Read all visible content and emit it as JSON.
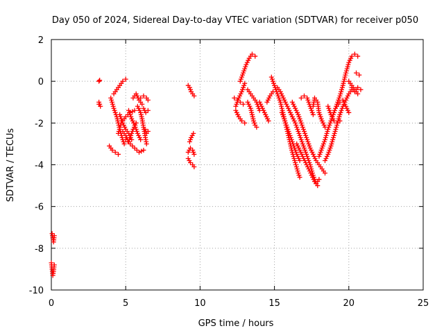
{
  "chart_data": {
    "type": "scatter",
    "title": "Day 050 of 2024, Sidereal Day-to-day VTEC variation (SDTVAR) for receiver p050",
    "xlabel": "GPS time / hours",
    "ylabel": "SDTVAR / TECUs",
    "xlim": [
      0,
      25
    ],
    "ylim": [
      -10,
      2
    ],
    "xticks": [
      "0",
      "5",
      "10",
      "15",
      "20",
      "25"
    ],
    "yticks": [
      "-10",
      "-8",
      "-6",
      "-4",
      "-2",
      "0",
      "2"
    ],
    "grid": true,
    "marker": "plus",
    "color": "#ff0000",
    "tracks": [
      {
        "points": [
          [
            0.05,
            -7.3
          ],
          [
            0.1,
            -7.5
          ],
          [
            0.15,
            -7.7
          ],
          [
            0.2,
            -7.4
          ]
        ]
      },
      {
        "points": [
          [
            0.0,
            -8.7
          ],
          [
            0.05,
            -9.0
          ],
          [
            0.1,
            -9.3
          ],
          [
            0.15,
            -9.1
          ],
          [
            0.2,
            -8.8
          ]
        ]
      },
      {
        "points": [
          [
            3.2,
            0.0
          ],
          [
            3.25,
            0.05
          ]
        ]
      },
      {
        "points": [
          [
            3.2,
            -1.0
          ],
          [
            3.3,
            -1.2
          ],
          [
            3.2,
            -1.1
          ]
        ]
      },
      {
        "points": [
          [
            3.9,
            -3.1
          ],
          [
            4.1,
            -3.3
          ],
          [
            4.3,
            -3.4
          ],
          [
            4.5,
            -3.5
          ]
        ]
      },
      {
        "points": [
          [
            4.0,
            -0.8
          ],
          [
            4.2,
            -1.3
          ],
          [
            4.4,
            -1.7
          ],
          [
            4.6,
            -2.3
          ],
          [
            4.8,
            -2.8
          ],
          [
            4.9,
            -3.0
          ]
        ]
      },
      {
        "points": [
          [
            4.2,
            -0.6
          ],
          [
            4.4,
            -0.4
          ],
          [
            4.6,
            -0.2
          ],
          [
            4.8,
            0.0
          ],
          [
            5.0,
            0.1
          ]
        ]
      },
      {
        "points": [
          [
            4.5,
            -2.5
          ],
          [
            4.7,
            -2.0
          ],
          [
            5.0,
            -1.7
          ],
          [
            5.3,
            -1.5
          ],
          [
            5.6,
            -1.4
          ]
        ]
      },
      {
        "points": [
          [
            4.6,
            -1.6
          ],
          [
            4.8,
            -2.0
          ],
          [
            5.0,
            -2.3
          ],
          [
            5.2,
            -2.5
          ],
          [
            5.4,
            -2.8
          ]
        ]
      },
      {
        "points": [
          [
            4.8,
            -2.4
          ],
          [
            5.0,
            -2.6
          ],
          [
            5.2,
            -2.9
          ],
          [
            5.5,
            -2.3
          ],
          [
            5.7,
            -2.0
          ]
        ]
      },
      {
        "points": [
          [
            5.2,
            -1.4
          ],
          [
            5.4,
            -1.8
          ],
          [
            5.6,
            -2.1
          ],
          [
            5.8,
            -2.5
          ],
          [
            6.0,
            -2.8
          ]
        ]
      },
      {
        "points": [
          [
            5.0,
            -2.8
          ],
          [
            5.3,
            -3.0
          ],
          [
            5.6,
            -3.2
          ],
          [
            5.9,
            -3.4
          ],
          [
            6.2,
            -3.3
          ]
        ]
      },
      {
        "points": [
          [
            5.5,
            -0.8
          ],
          [
            5.7,
            -0.6
          ],
          [
            5.9,
            -0.9
          ],
          [
            6.1,
            -1.1
          ]
        ]
      },
      {
        "points": [
          [
            5.8,
            -1.2
          ],
          [
            6.0,
            -1.5
          ],
          [
            6.1,
            -1.8
          ],
          [
            6.2,
            -2.2
          ],
          [
            6.3,
            -2.6
          ],
          [
            6.4,
            -3.0
          ]
        ]
      },
      {
        "points": [
          [
            6.0,
            -0.8
          ],
          [
            6.2,
            -0.7
          ],
          [
            6.4,
            -0.8
          ],
          [
            6.5,
            -0.9
          ]
        ]
      },
      {
        "points": [
          [
            6.2,
            -1.3
          ],
          [
            6.35,
            -1.5
          ],
          [
            6.5,
            -1.4
          ]
        ]
      },
      {
        "points": [
          [
            6.3,
            -2.3
          ],
          [
            6.4,
            -2.5
          ],
          [
            6.5,
            -2.4
          ]
        ]
      },
      {
        "points": [
          [
            9.2,
            -0.2
          ],
          [
            9.3,
            -0.3
          ],
          [
            9.4,
            -0.5
          ],
          [
            9.5,
            -0.6
          ],
          [
            9.6,
            -0.7
          ]
        ]
      },
      {
        "points": [
          [
            9.3,
            -2.9
          ],
          [
            9.4,
            -2.7
          ],
          [
            9.55,
            -2.5
          ]
        ]
      },
      {
        "points": [
          [
            9.2,
            -3.4
          ],
          [
            9.35,
            -3.2
          ],
          [
            9.5,
            -3.3
          ],
          [
            9.6,
            -3.5
          ]
        ]
      },
      {
        "points": [
          [
            9.2,
            -3.7
          ],
          [
            9.35,
            -3.9
          ],
          [
            9.5,
            -4.0
          ],
          [
            9.6,
            -4.1
          ]
        ]
      },
      {
        "points": [
          [
            12.3,
            -0.8
          ],
          [
            12.5,
            -0.9
          ],
          [
            12.7,
            -1.0
          ],
          [
            12.9,
            -1.1
          ]
        ]
      },
      {
        "points": [
          [
            12.4,
            -1.4
          ],
          [
            12.6,
            -1.7
          ],
          [
            12.8,
            -1.9
          ],
          [
            13.0,
            -2.0
          ]
        ]
      },
      {
        "points": [
          [
            12.4,
            -1.2
          ],
          [
            12.6,
            -0.8
          ],
          [
            12.8,
            -0.5
          ],
          [
            13.0,
            -0.1
          ]
        ]
      },
      {
        "points": [
          [
            12.7,
            0.0
          ],
          [
            12.9,
            0.4
          ],
          [
            13.1,
            0.8
          ],
          [
            13.3,
            1.1
          ],
          [
            13.5,
            1.3
          ],
          [
            13.7,
            1.2
          ]
        ]
      },
      {
        "points": [
          [
            13.2,
            -0.4
          ],
          [
            13.4,
            -0.6
          ],
          [
            13.6,
            -0.8
          ],
          [
            13.8,
            -1.0
          ],
          [
            14.0,
            -1.4
          ]
        ]
      },
      {
        "points": [
          [
            13.2,
            -1.0
          ],
          [
            13.4,
            -1.3
          ],
          [
            13.5,
            -1.6
          ],
          [
            13.6,
            -1.9
          ],
          [
            13.7,
            -2.1
          ],
          [
            13.8,
            -2.2
          ]
        ]
      },
      {
        "points": [
          [
            14.0,
            -1.0
          ],
          [
            14.2,
            -1.3
          ],
          [
            14.4,
            -1.6
          ],
          [
            14.6,
            -1.9
          ]
        ]
      },
      {
        "points": [
          [
            14.5,
            -1.0
          ],
          [
            14.7,
            -0.7
          ],
          [
            14.9,
            -0.5
          ]
        ]
      },
      {
        "points": [
          [
            14.8,
            0.2
          ],
          [
            15.0,
            -0.2
          ],
          [
            15.2,
            -0.6
          ],
          [
            15.4,
            -1.0
          ],
          [
            15.6,
            -1.6
          ],
          [
            15.8,
            -2.2
          ],
          [
            16.0,
            -2.8
          ],
          [
            16.2,
            -3.4
          ],
          [
            16.4,
            -3.9
          ],
          [
            16.6,
            -4.4
          ],
          [
            16.7,
            -4.6
          ]
        ]
      },
      {
        "points": [
          [
            15.2,
            -0.3
          ],
          [
            15.4,
            -0.5
          ],
          [
            15.6,
            -0.8
          ],
          [
            15.8,
            -1.1
          ],
          [
            16.0,
            -1.4
          ],
          [
            16.2,
            -1.7
          ],
          [
            16.4,
            -2.0
          ],
          [
            16.6,
            -2.4
          ],
          [
            16.8,
            -2.8
          ],
          [
            17.0,
            -3.2
          ],
          [
            17.2,
            -3.6
          ],
          [
            17.4,
            -4.0
          ],
          [
            17.6,
            -4.5
          ],
          [
            17.8,
            -4.9
          ],
          [
            18.0,
            -4.7
          ]
        ]
      },
      {
        "points": [
          [
            15.5,
            -1.5
          ],
          [
            15.7,
            -1.9
          ],
          [
            15.9,
            -2.3
          ],
          [
            16.1,
            -2.7
          ],
          [
            16.3,
            -3.1
          ],
          [
            16.5,
            -3.5
          ],
          [
            16.7,
            -3.8
          ]
        ]
      },
      {
        "points": [
          [
            16.2,
            -1.0
          ],
          [
            16.4,
            -1.3
          ],
          [
            16.6,
            -1.6
          ],
          [
            16.8,
            -2.0
          ],
          [
            17.0,
            -2.4
          ],
          [
            17.2,
            -2.8
          ],
          [
            17.4,
            -3.2
          ],
          [
            17.6,
            -3.5
          ],
          [
            17.8,
            -3.8
          ],
          [
            18.0,
            -4.0
          ],
          [
            18.2,
            -4.2
          ],
          [
            18.4,
            -4.4
          ]
        ]
      },
      {
        "points": [
          [
            16.5,
            -3.0
          ],
          [
            16.7,
            -3.3
          ],
          [
            16.9,
            -3.6
          ],
          [
            17.1,
            -3.9
          ],
          [
            17.3,
            -4.2
          ],
          [
            17.5,
            -4.5
          ],
          [
            17.7,
            -4.8
          ],
          [
            17.9,
            -5.0
          ]
        ]
      },
      {
        "points": [
          [
            16.8,
            -0.8
          ],
          [
            17.0,
            -0.7
          ],
          [
            17.2,
            -0.8
          ],
          [
            17.4,
            -1.2
          ],
          [
            17.6,
            -1.6
          ]
        ]
      },
      {
        "points": [
          [
            17.6,
            -1.2
          ],
          [
            17.7,
            -0.8
          ],
          [
            17.9,
            -1.0
          ],
          [
            18.0,
            -1.5
          ],
          [
            18.2,
            -1.9
          ],
          [
            18.4,
            -2.2
          ]
        ]
      },
      {
        "points": [
          [
            18.0,
            -3.6
          ],
          [
            18.2,
            -3.2
          ],
          [
            18.4,
            -2.8
          ],
          [
            18.6,
            -2.3
          ],
          [
            18.8,
            -1.9
          ],
          [
            19.0,
            -1.5
          ],
          [
            19.2,
            -1.1
          ],
          [
            19.4,
            -0.7
          ],
          [
            19.6,
            -0.2
          ],
          [
            19.8,
            0.4
          ],
          [
            20.0,
            0.9
          ],
          [
            20.2,
            1.2
          ],
          [
            20.4,
            1.3
          ],
          [
            20.6,
            1.2
          ]
        ]
      },
      {
        "points": [
          [
            18.4,
            -3.8
          ],
          [
            18.6,
            -3.5
          ],
          [
            18.8,
            -3.1
          ],
          [
            19.0,
            -2.6
          ],
          [
            19.2,
            -2.1
          ],
          [
            19.4,
            -1.6
          ],
          [
            19.6,
            -1.2
          ],
          [
            19.8,
            -0.9
          ],
          [
            20.0,
            -0.6
          ],
          [
            20.2,
            -0.4
          ]
        ]
      },
      {
        "points": [
          [
            18.6,
            -1.2
          ],
          [
            18.8,
            -1.6
          ],
          [
            19.0,
            -1.9
          ],
          [
            19.2,
            -2.0
          ],
          [
            19.4,
            -1.9
          ]
        ]
      },
      {
        "points": [
          [
            19.2,
            -1.2
          ],
          [
            19.4,
            -1.0
          ],
          [
            19.6,
            -0.9
          ],
          [
            19.8,
            -1.2
          ],
          [
            20.0,
            -1.5
          ]
        ]
      },
      {
        "points": [
          [
            20.0,
            0.0
          ],
          [
            20.2,
            -0.2
          ],
          [
            20.4,
            -0.4
          ],
          [
            20.6,
            -0.6
          ]
        ]
      },
      {
        "points": [
          [
            20.5,
            0.4
          ],
          [
            20.7,
            0.3
          ]
        ]
      },
      {
        "points": [
          [
            20.2,
            -0.3
          ],
          [
            20.4,
            -0.5
          ],
          [
            20.6,
            -0.3
          ],
          [
            20.8,
            -0.4
          ]
        ]
      }
    ]
  }
}
